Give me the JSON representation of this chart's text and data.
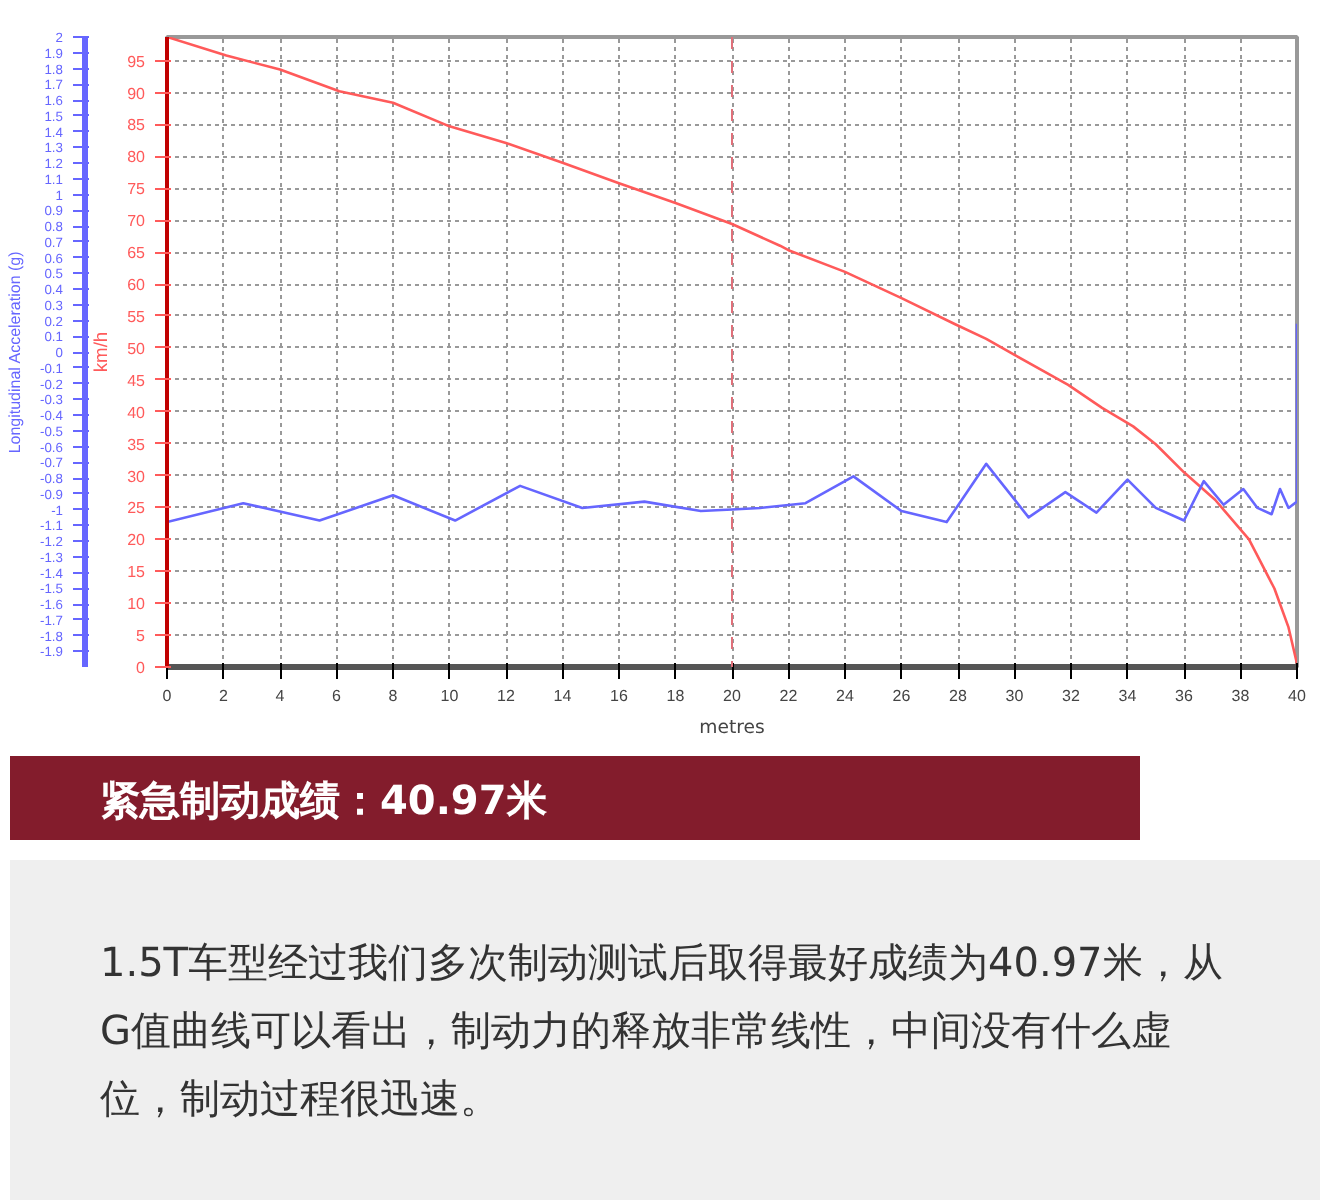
{
  "chart_data": {
    "type": "line",
    "title": "紧急制动成绩：40.97米",
    "annotations": [
      "1.5T车型经过我们多次制动测试后取得最好成绩为40.97米，从G值曲线可以看出，制动力的释放非常线性，中间没有什么虚位，制动过程很迅速。"
    ],
    "xlabel": "metres",
    "ylabel": "km/h",
    "y2label": "Longitudinal Acceleration (g)",
    "xlim": [
      0,
      40
    ],
    "xticks": [
      0,
      2,
      4,
      6,
      8,
      10,
      12,
      14,
      16,
      18,
      20,
      22,
      24,
      26,
      28,
      30,
      32,
      34,
      36,
      38,
      40
    ],
    "ylim": [
      0,
      98.7
    ],
    "yticks": [
      0,
      5,
      10,
      15,
      20,
      25,
      30,
      35,
      40,
      45,
      50,
      55,
      60,
      65,
      70,
      75,
      80,
      85,
      90,
      95
    ],
    "y2lim": [
      -2,
      2
    ],
    "y2ticks": [
      2,
      1.9,
      1.8,
      1.7,
      1.6,
      1.5,
      1.4,
      1.3,
      1.2,
      1.1,
      1,
      0.9,
      0.8,
      0.7,
      0.6,
      0.5,
      0.4,
      0.3,
      0.2,
      0.1,
      0,
      -0.1,
      -0.2,
      -0.3,
      -0.4,
      -0.5,
      -0.6,
      -0.7,
      -0.8,
      -0.9,
      -1,
      -1.1,
      -1.2,
      -1.3,
      -1.4,
      -1.5,
      -1.6,
      -1.7,
      -1.8,
      -1.9
    ],
    "grid": true,
    "line_style": "solid",
    "ref_lines": [
      {
        "axis": "x",
        "value": 20,
        "color": "#e0707a",
        "line_style": "dashed"
      }
    ],
    "series": [
      {
        "color": "#ff5a5a",
        "x": [
          0,
          2.1,
          4,
          6.1,
          8,
          10,
          12,
          14,
          16,
          18,
          20,
          21.7,
          22,
          24,
          26,
          27.9,
          29,
          30,
          31.9,
          33.1,
          34.2,
          35,
          36,
          37.1,
          38.3,
          39.2,
          39.7,
          40
        ],
        "values": [
          98.7,
          95.8,
          93.6,
          90.2,
          88.4,
          84.7,
          82.1,
          79,
          75.8,
          72.7,
          69.4,
          66,
          65.3,
          61.9,
          57.8,
          53.7,
          51.4,
          48.9,
          44.2,
          40.6,
          37.7,
          34.9,
          30.5,
          26.2,
          20,
          12.3,
          6.2,
          0.5
        ]
      },
      {
        "color": "#6666ff",
        "axis": "y2",
        "x": [
          0,
          2.7,
          5.4,
          8,
          10.2,
          12.5,
          14.7,
          16.9,
          18.9,
          20,
          21,
          22.6,
          24.3,
          26,
          27.6,
          29,
          30.5,
          31.8,
          32.9,
          34,
          35,
          36,
          36.7,
          37.4,
          38.1,
          38.6,
          39.1,
          39.4,
          39.7,
          40,
          40
        ],
        "values": [
          -1.08,
          -0.96,
          -1.07,
          -0.91,
          -1.07,
          -0.85,
          -0.99,
          -0.95,
          -1.01,
          -1,
          -0.99,
          -0.96,
          -0.79,
          -1.01,
          -1.08,
          -0.71,
          -1.05,
          -0.89,
          -1.02,
          -0.81,
          -0.99,
          -1.07,
          -0.82,
          -0.97,
          -0.87,
          -0.99,
          -1.03,
          -0.87,
          -0.99,
          -0.95,
          0.18
        ]
      }
    ]
  }
}
